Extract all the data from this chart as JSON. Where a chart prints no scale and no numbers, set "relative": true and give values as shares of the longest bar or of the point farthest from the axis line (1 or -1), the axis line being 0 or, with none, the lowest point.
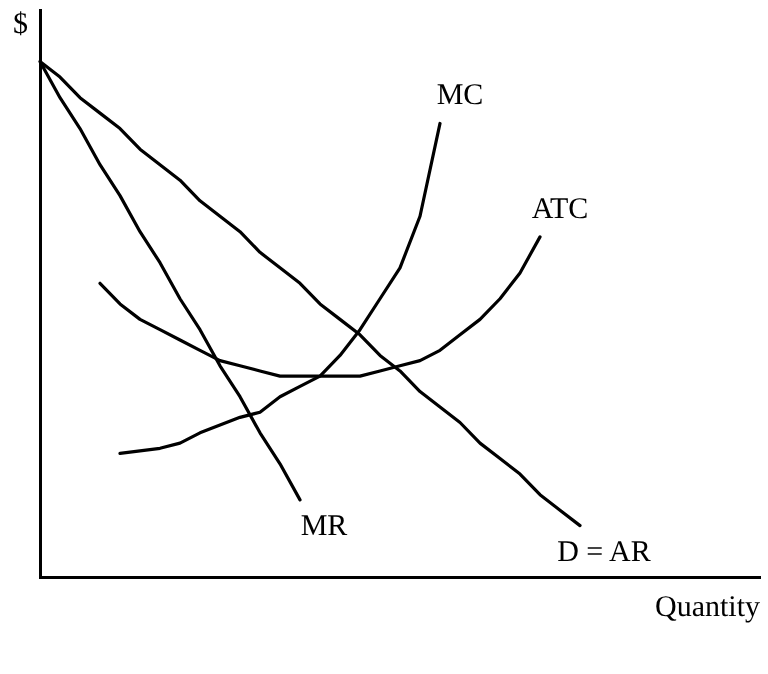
{
  "chart_data": {
    "type": "line",
    "relative": true,
    "xlabel": "Quantity",
    "ylabel": "$",
    "grid": false,
    "legend": false,
    "marker": "none",
    "line_style": "solid",
    "categories": [
      null,
      null,
      null,
      null,
      null,
      null,
      null,
      null,
      null,
      null,
      null,
      null,
      null,
      null,
      null,
      null,
      null,
      null,
      null,
      null,
      null,
      null,
      null,
      null,
      null,
      null,
      null,
      null,
      null,
      null,
      null,
      null,
      null,
      null,
      null,
      null,
      null
    ],
    "series": [
      {
        "name": "D = AR",
        "color": "#000000",
        "values": [
          1,
          0.97,
          0.93,
          0.9,
          0.87,
          0.83,
          0.8,
          0.77,
          0.73,
          0.7,
          0.67,
          0.63,
          0.6,
          0.57,
          0.53,
          0.5,
          0.47,
          0.43,
          0.4,
          0.36,
          0.33,
          0.3,
          0.26,
          0.23,
          0.2,
          0.16,
          0.13,
          0.1,
          null,
          null,
          null,
          null,
          null,
          null,
          null,
          null,
          null
        ]
      },
      {
        "name": "MR",
        "color": "#000000",
        "values": [
          1,
          0.93,
          0.87,
          0.8,
          0.74,
          0.67,
          0.61,
          0.54,
          0.48,
          0.41,
          0.35,
          0.28,
          0.22,
          0.15,
          null,
          null,
          null,
          null,
          null,
          null,
          null,
          null,
          null,
          null,
          null,
          null,
          null,
          null,
          null,
          null,
          null,
          null,
          null,
          null,
          null,
          null,
          null
        ]
      },
      {
        "name": "MC",
        "color": "#000000",
        "values": [
          null,
          null,
          null,
          null,
          0.24,
          0.245,
          0.25,
          0.26,
          0.28,
          0.295,
          0.31,
          0.32,
          0.35,
          0.37,
          0.39,
          0.43,
          0.48,
          0.54,
          0.6,
          0.7,
          0.88,
          null,
          null,
          null,
          null,
          null,
          null,
          null,
          null,
          null,
          null,
          null,
          null,
          null,
          null,
          null,
          null
        ]
      },
      {
        "name": "ATC",
        "color": "#000000",
        "values": [
          null,
          null,
          null,
          0.57,
          0.53,
          0.5,
          0.48,
          0.46,
          0.44,
          0.42,
          0.41,
          0.4,
          0.39,
          0.39,
          0.39,
          0.39,
          0.39,
          0.4,
          0.41,
          0.42,
          0.44,
          0.47,
          0.5,
          0.54,
          0.59,
          0.66,
          null,
          null,
          null,
          null,
          null,
          null,
          null,
          null,
          null,
          null,
          null
        ]
      }
    ]
  }
}
